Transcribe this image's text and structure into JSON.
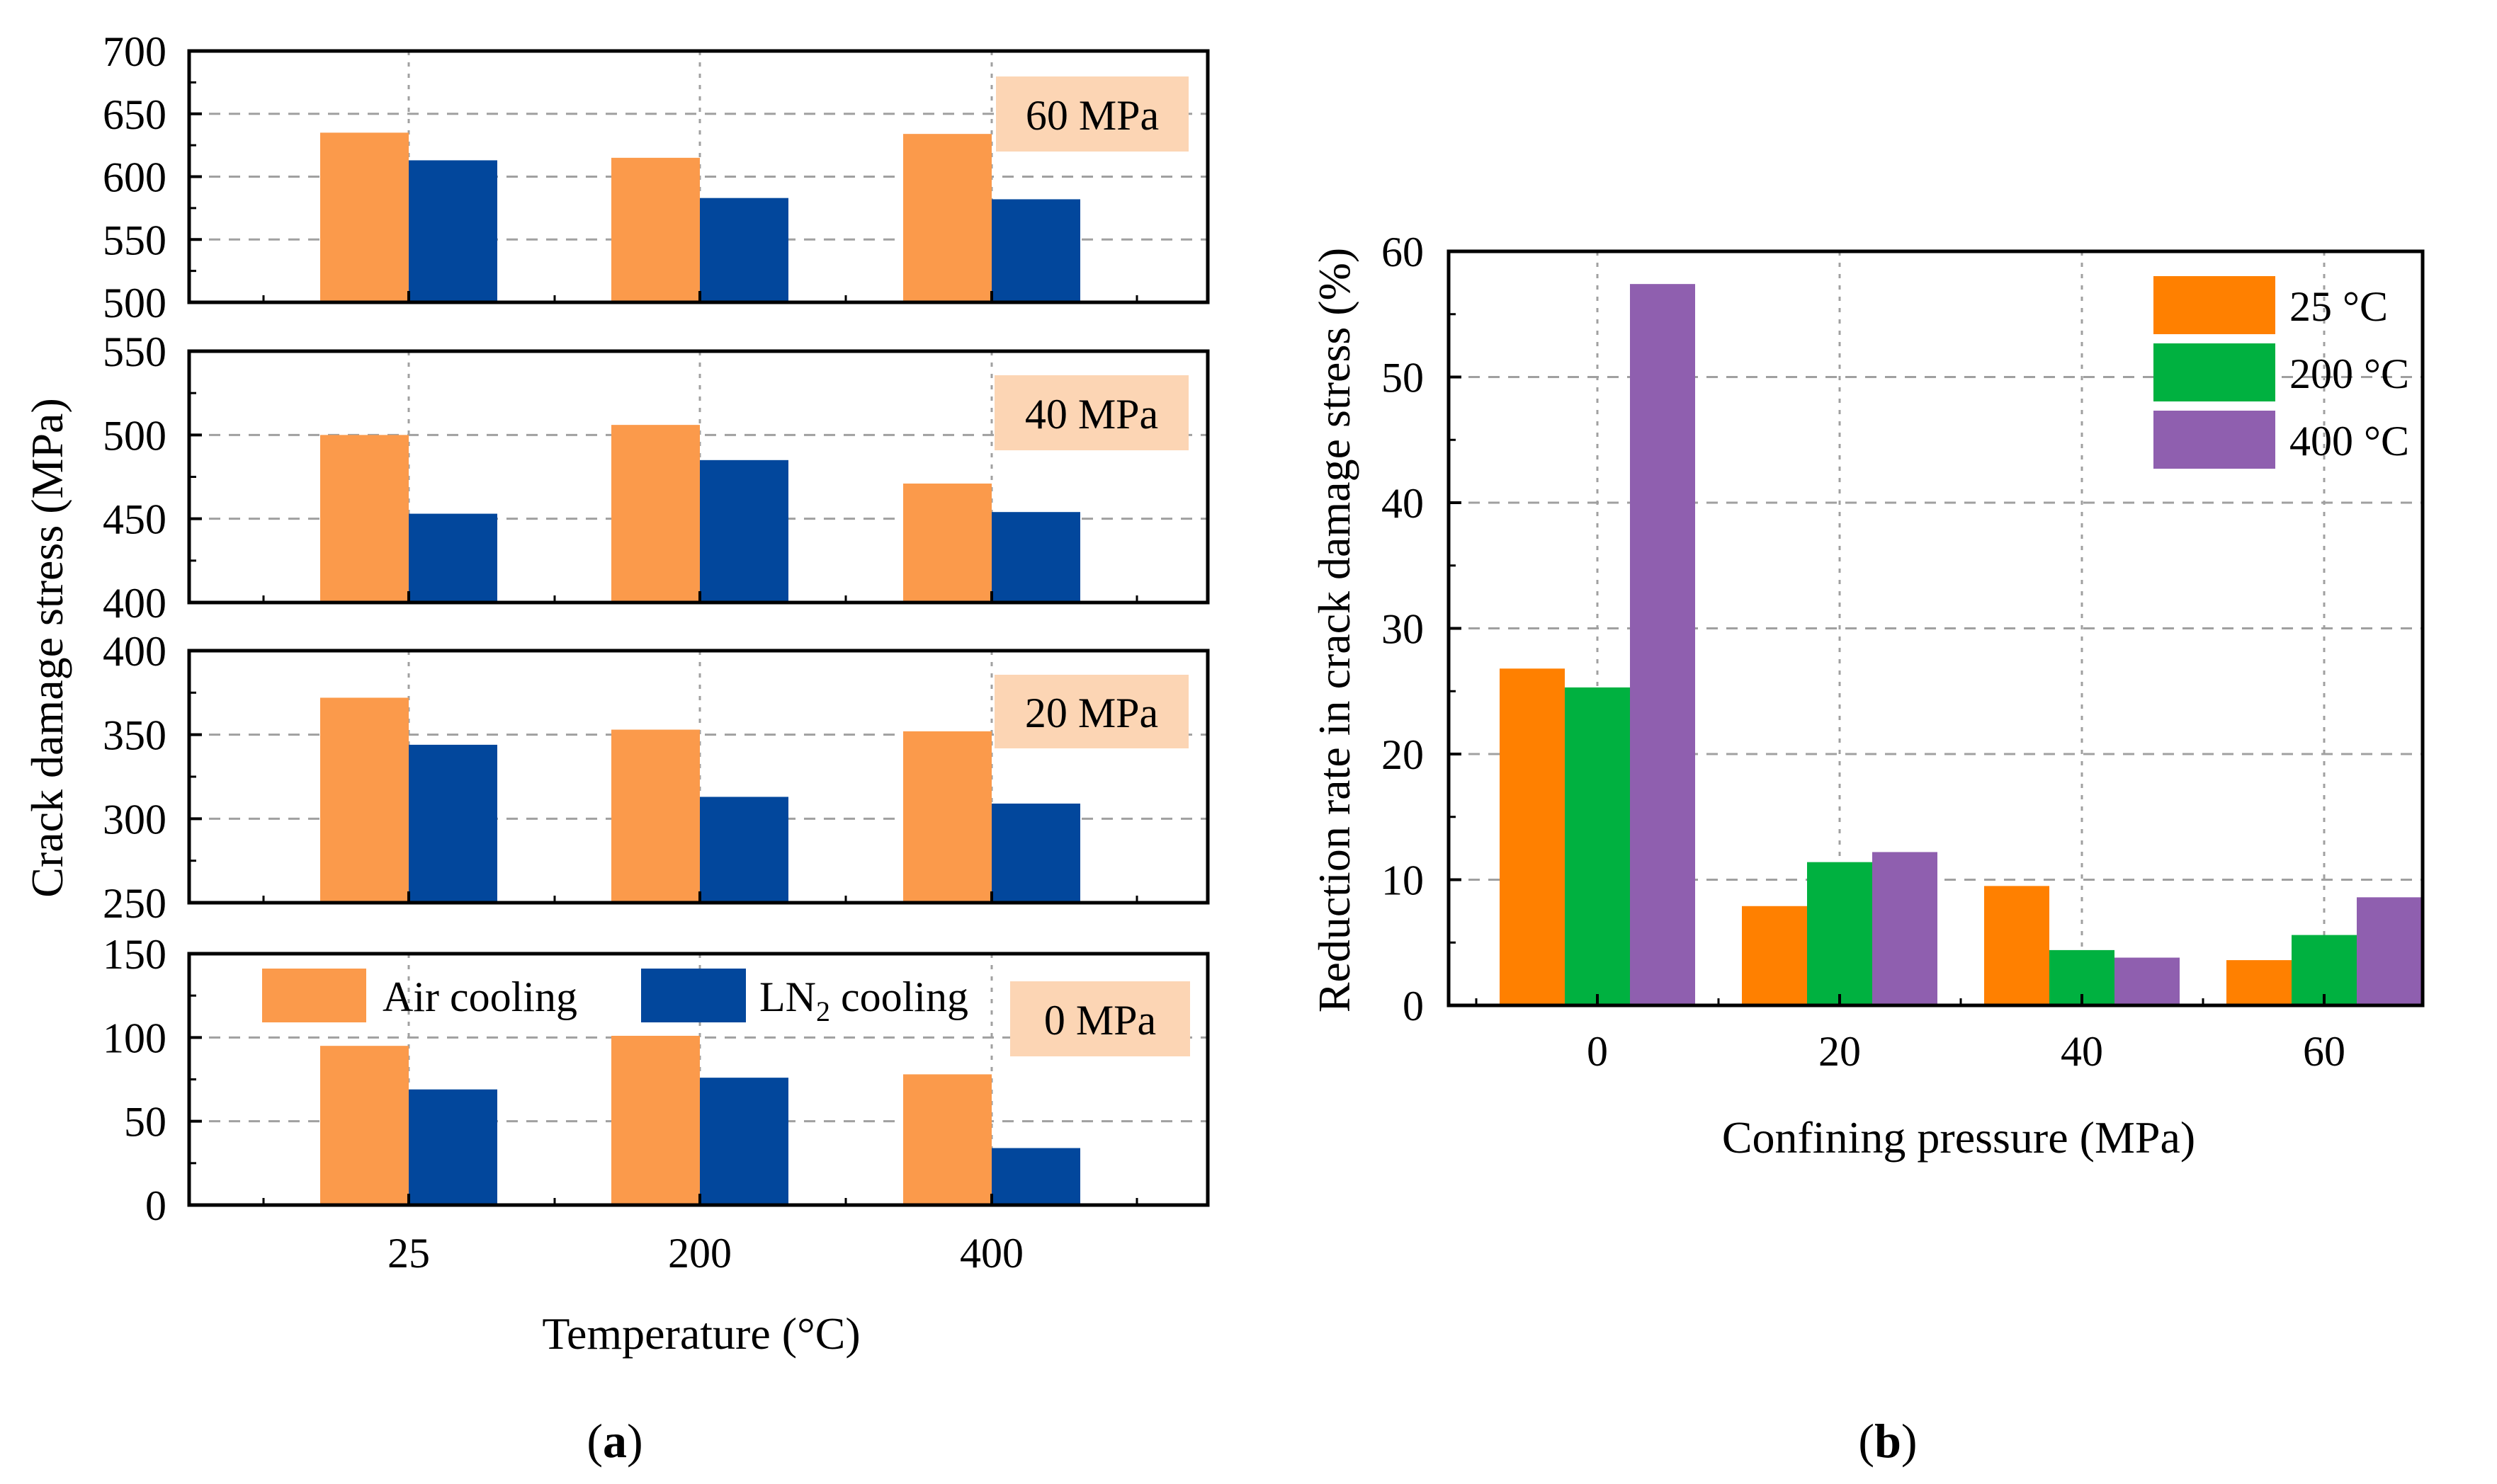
{
  "colors": {
    "air": "#FB9A4B",
    "ln2": "#02479C",
    "c25": "#FF8000",
    "c200": "#00B140",
    "c400": "#8F5FAF",
    "pressure_tag_bg": "#FCD5B4",
    "grid": "#A0A0A0"
  },
  "captions": {
    "a": "a",
    "b": "b"
  },
  "chart_data": [
    {
      "id": "a",
      "type": "bar",
      "xlabel": "Temperature (°C)",
      "ylabel": "Crack damage stress (MPa)",
      "categories": [
        "25",
        "200",
        "400"
      ],
      "legend": {
        "air": "Air cooling",
        "ln2_prefix": "LN",
        "ln2_sub": "2",
        "ln2_suffix": " cooling"
      },
      "panels": [
        {
          "label": "60 MPa",
          "ylim": [
            500,
            700
          ],
          "yticks": [
            "500",
            "550",
            "600",
            "650",
            "700"
          ],
          "series": [
            {
              "name": "Air cooling",
              "values": [
                635,
                615,
                634
              ]
            },
            {
              "name": "LN2 cooling",
              "values": [
                613,
                583,
                582
              ]
            }
          ]
        },
        {
          "label": "40 MPa",
          "ylim": [
            400,
            550
          ],
          "yticks": [
            "400",
            "450",
            "500",
            "550"
          ],
          "series": [
            {
              "name": "Air cooling",
              "values": [
                500,
                506,
                471
              ]
            },
            {
              "name": "LN2 cooling",
              "values": [
                453,
                485,
                454
              ]
            }
          ]
        },
        {
          "label": "20 MPa",
          "ylim": [
            250,
            400
          ],
          "yticks": [
            "250",
            "300",
            "350",
            "400"
          ],
          "series": [
            {
              "name": "Air cooling",
              "values": [
                372,
                353,
                352
              ]
            },
            {
              "name": "LN2 cooling",
              "values": [
                344,
                313,
                309
              ]
            }
          ]
        },
        {
          "label": "0 MPa",
          "ylim": [
            0,
            150
          ],
          "yticks": [
            "0",
            "50",
            "100",
            "150"
          ],
          "series": [
            {
              "name": "Air cooling",
              "values": [
                95,
                101,
                78
              ]
            },
            {
              "name": "LN2 cooling",
              "values": [
                69,
                76,
                34
              ]
            }
          ]
        }
      ]
    },
    {
      "id": "b",
      "type": "bar",
      "xlabel": "Confining pressure (MPa)",
      "ylabel": "Reduction rate in crack damage stress (%)",
      "categories": [
        "0",
        "20",
        "40",
        "60"
      ],
      "ylim": [
        0,
        60
      ],
      "yticks": [
        "0",
        "10",
        "20",
        "30",
        "40",
        "50",
        "60"
      ],
      "legend_position": "top-right",
      "series": [
        {
          "name": "25 °C",
          "values": [
            26.8,
            7.9,
            9.5,
            3.6
          ]
        },
        {
          "name": "200 °C",
          "values": [
            25.3,
            11.4,
            4.4,
            5.6
          ]
        },
        {
          "name": "400 °C",
          "values": [
            57.4,
            12.2,
            3.8,
            8.6
          ]
        }
      ]
    }
  ]
}
